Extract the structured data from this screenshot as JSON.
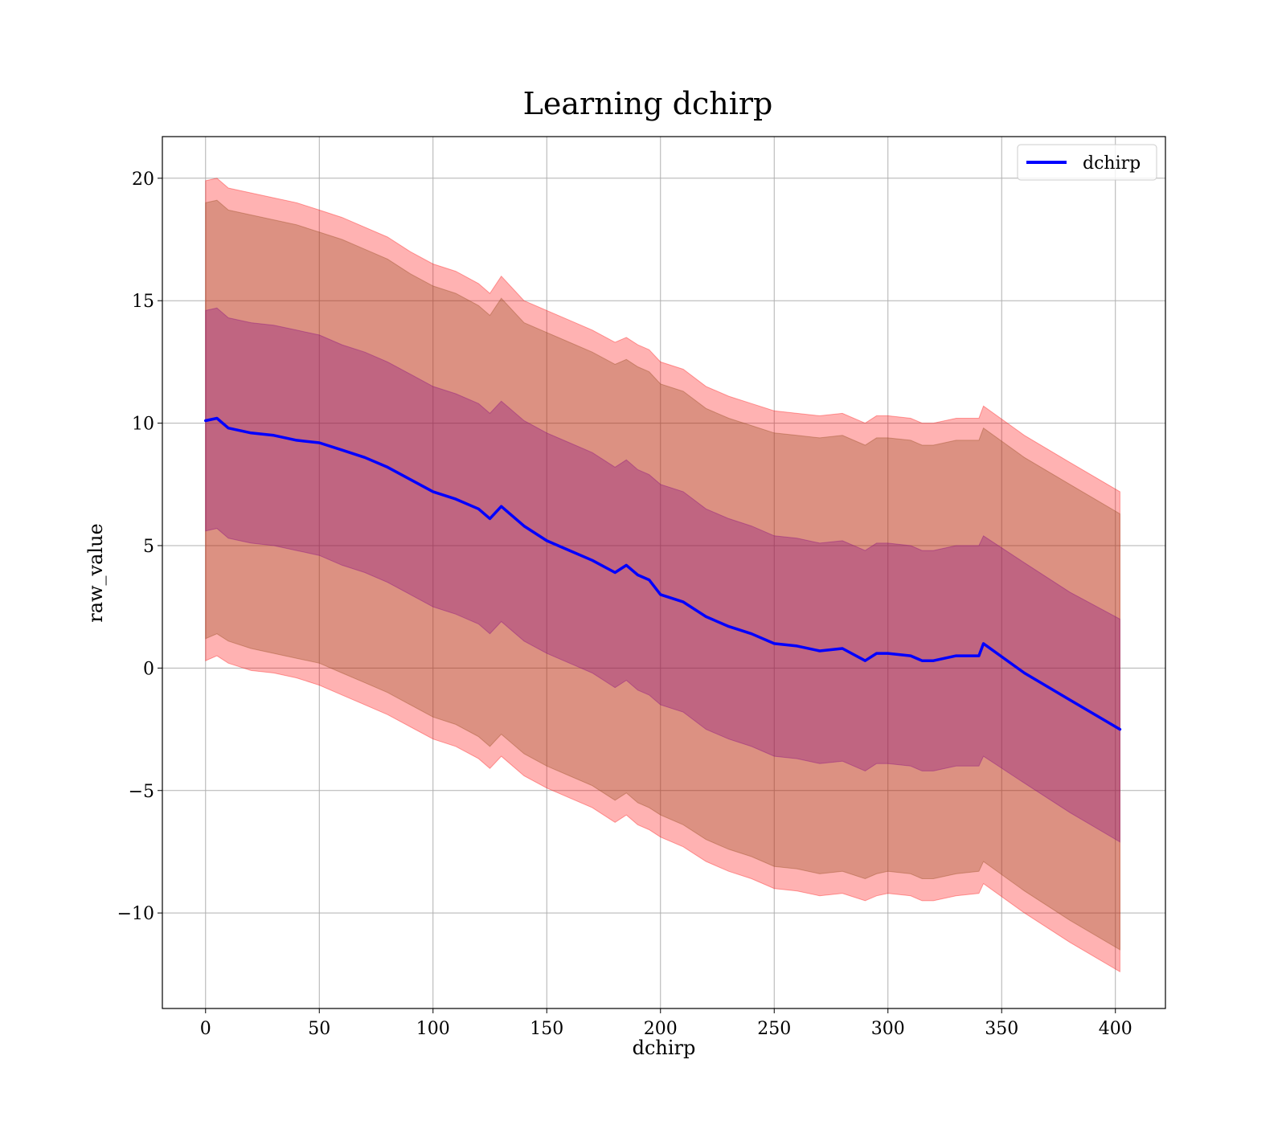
{
  "chart_data": {
    "type": "area",
    "title": "Learning dchirp",
    "xlabel": "dchirp",
    "ylabel": "raw_value",
    "xlim": [
      -19,
      422
    ],
    "ylim": [
      -13.9,
      21.7
    ],
    "xticks": [
      0,
      50,
      100,
      150,
      200,
      250,
      300,
      350,
      400
    ],
    "yticks": [
      -10,
      -5,
      0,
      5,
      10,
      15,
      20
    ],
    "xtick_labels": [
      "0",
      "50",
      "100",
      "150",
      "200",
      "250",
      "300",
      "350",
      "400"
    ],
    "ytick_labels": [
      "−10",
      "−5",
      "0",
      "5",
      "10",
      "15",
      "20"
    ],
    "grid": true,
    "legend": {
      "position": "top-right",
      "entries": [
        {
          "label": "dchirp",
          "color": "#0000ff"
        }
      ]
    },
    "x": [
      0,
      5,
      10,
      20,
      30,
      40,
      50,
      60,
      70,
      80,
      90,
      100,
      110,
      120,
      125,
      130,
      140,
      150,
      160,
      170,
      180,
      185,
      190,
      195,
      200,
      210,
      220,
      230,
      240,
      250,
      260,
      270,
      280,
      290,
      295,
      300,
      310,
      315,
      320,
      330,
      340,
      342,
      360,
      380,
      402
    ],
    "series": [
      {
        "name": "dchirp",
        "color": "#0000ff",
        "values": [
          10.1,
          10.2,
          9.8,
          9.6,
          9.5,
          9.3,
          9.2,
          8.9,
          8.6,
          8.2,
          7.7,
          7.2,
          6.9,
          6.5,
          6.1,
          6.6,
          5.8,
          5.2,
          4.8,
          4.4,
          3.9,
          4.2,
          3.8,
          3.6,
          3.0,
          2.7,
          2.1,
          1.7,
          1.4,
          1.0,
          0.9,
          0.7,
          0.8,
          0.3,
          0.6,
          0.6,
          0.5,
          0.3,
          0.3,
          0.5,
          0.5,
          1.0,
          -0.2,
          -1.3,
          -2.5
        ]
      }
    ],
    "bands": [
      {
        "color": "#ff0000",
        "opacity": 0.3,
        "lower": [
          0.3,
          0.5,
          0.2,
          -0.1,
          -0.2,
          -0.4,
          -0.7,
          -1.1,
          -1.5,
          -1.9,
          -2.4,
          -2.9,
          -3.2,
          -3.7,
          -4.1,
          -3.6,
          -4.4,
          -4.9,
          -5.3,
          -5.7,
          -6.3,
          -6.0,
          -6.4,
          -6.6,
          -6.9,
          -7.3,
          -7.9,
          -8.3,
          -8.6,
          -9.0,
          -9.1,
          -9.3,
          -9.2,
          -9.5,
          -9.3,
          -9.2,
          -9.3,
          -9.5,
          -9.5,
          -9.3,
          -9.2,
          -8.8,
          -10.0,
          -11.2,
          -12.4
        ],
        "upper": [
          19.9,
          20.0,
          19.6,
          19.4,
          19.2,
          19.0,
          18.7,
          18.4,
          18.0,
          17.6,
          17.0,
          16.5,
          16.2,
          15.7,
          15.3,
          16.0,
          15.0,
          14.6,
          14.2,
          13.8,
          13.3,
          13.5,
          13.2,
          13.0,
          12.5,
          12.2,
          11.5,
          11.1,
          10.8,
          10.5,
          10.4,
          10.3,
          10.4,
          10.0,
          10.3,
          10.3,
          10.2,
          10.0,
          10.0,
          10.2,
          10.2,
          10.7,
          9.5,
          8.4,
          7.2
        ]
      },
      {
        "color": "#8b4513",
        "opacity": 0.3,
        "lower": [
          1.2,
          1.4,
          1.1,
          0.8,
          0.6,
          0.4,
          0.2,
          -0.2,
          -0.6,
          -1.0,
          -1.5,
          -2.0,
          -2.3,
          -2.8,
          -3.2,
          -2.7,
          -3.5,
          -4.0,
          -4.4,
          -4.8,
          -5.4,
          -5.1,
          -5.5,
          -5.7,
          -6.0,
          -6.4,
          -7.0,
          -7.4,
          -7.7,
          -8.1,
          -8.2,
          -8.4,
          -8.3,
          -8.6,
          -8.4,
          -8.3,
          -8.4,
          -8.6,
          -8.6,
          -8.4,
          -8.3,
          -7.9,
          -9.1,
          -10.3,
          -11.5
        ],
        "upper": [
          19.0,
          19.1,
          18.7,
          18.5,
          18.3,
          18.1,
          17.8,
          17.5,
          17.1,
          16.7,
          16.1,
          15.6,
          15.3,
          14.8,
          14.4,
          15.1,
          14.1,
          13.7,
          13.3,
          12.9,
          12.4,
          12.6,
          12.3,
          12.1,
          11.6,
          11.3,
          10.6,
          10.2,
          9.9,
          9.6,
          9.5,
          9.4,
          9.5,
          9.1,
          9.4,
          9.4,
          9.3,
          9.1,
          9.1,
          9.3,
          9.3,
          9.8,
          8.6,
          7.5,
          6.3
        ]
      },
      {
        "color": "#800080",
        "opacity": 0.3,
        "lower": [
          5.6,
          5.7,
          5.3,
          5.1,
          5.0,
          4.8,
          4.6,
          4.2,
          3.9,
          3.5,
          3.0,
          2.5,
          2.2,
          1.8,
          1.4,
          1.9,
          1.1,
          0.6,
          0.2,
          -0.2,
          -0.8,
          -0.5,
          -0.9,
          -1.1,
          -1.5,
          -1.8,
          -2.5,
          -2.9,
          -3.2,
          -3.6,
          -3.7,
          -3.9,
          -3.8,
          -4.2,
          -3.9,
          -3.9,
          -4.0,
          -4.2,
          -4.2,
          -4.0,
          -4.0,
          -3.6,
          -4.7,
          -5.9,
          -7.1
        ],
        "upper": [
          14.6,
          14.7,
          14.3,
          14.1,
          14.0,
          13.8,
          13.6,
          13.2,
          12.9,
          12.5,
          12.0,
          11.5,
          11.2,
          10.8,
          10.4,
          10.9,
          10.1,
          9.6,
          9.2,
          8.8,
          8.2,
          8.5,
          8.1,
          7.9,
          7.5,
          7.2,
          6.5,
          6.1,
          5.8,
          5.4,
          5.3,
          5.1,
          5.2,
          4.8,
          5.1,
          5.1,
          5.0,
          4.8,
          4.8,
          5.0,
          5.0,
          5.4,
          4.3,
          3.1,
          2.0
        ]
      }
    ]
  }
}
